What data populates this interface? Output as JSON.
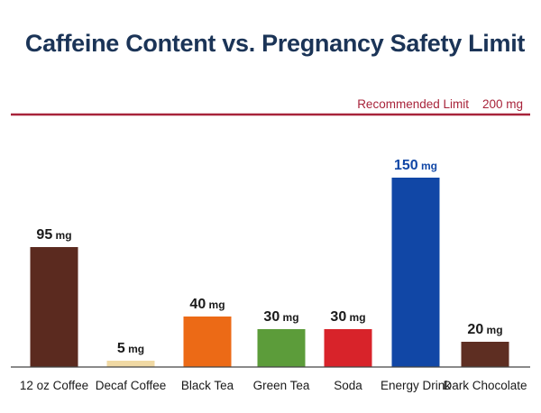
{
  "chart_data": {
    "type": "bar",
    "title": "Caffeine Content vs. Pregnancy Safety Limit",
    "xlabel": "",
    "ylabel": "",
    "ylim": [
      0,
      200
    ],
    "unit": "mg",
    "grid": false,
    "legend": "none",
    "categories": [
      "12 oz Coffee",
      "Decaf Coffee",
      "Black Tea",
      "Green Tea",
      "Soda",
      "Energy Drink",
      "Dark Chocolate"
    ],
    "values": [
      95,
      5,
      40,
      30,
      30,
      150,
      20
    ],
    "colors": [
      "#5b2a1f",
      "#f0d9a4",
      "#ec6a16",
      "#5c9c3a",
      "#d8232a",
      "#1147a6",
      "#5e2e22"
    ],
    "reference_line": {
      "label": "Recommended Limit",
      "value": 200,
      "value_label": "200 mg",
      "color": "#a8233a"
    }
  },
  "colors": {
    "title": "#1b3457",
    "text": "#1a1a1a",
    "axis": "#444444"
  }
}
